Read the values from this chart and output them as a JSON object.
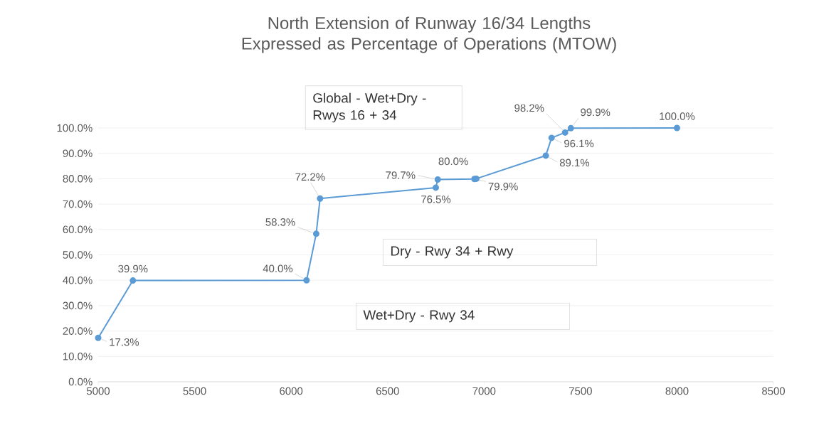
{
  "chart_data": {
    "type": "line",
    "title": "North Extension of Runway 16/34 Lengths Expressed as Percentage of Operations (MTOW)",
    "x": [
      5000,
      5180,
      6080,
      6130,
      6150,
      6750,
      6760,
      6950,
      6960,
      7320,
      7350,
      7420,
      7450,
      8000
    ],
    "values": [
      17.3,
      39.9,
      40.0,
      58.3,
      72.2,
      76.5,
      79.7,
      79.9,
      80.0,
      89.1,
      96.1,
      98.2,
      99.9,
      100.0
    ],
    "value_labels": [
      "17.3%",
      "39.9%",
      "40.0%",
      "58.3%",
      "72.2%",
      "76.5%",
      "79.7%",
      "79.9%",
      "80.0%",
      "89.1%",
      "96.1%",
      "98.2%",
      "99.9%",
      "100.0%"
    ],
    "color": "#5b9bd5",
    "marker": "circle",
    "grid": "y",
    "xlim": [
      5000,
      8500
    ],
    "xticks": [
      5000,
      5500,
      6000,
      6500,
      7000,
      7500,
      8000,
      8500
    ],
    "ylim": [
      0,
      100
    ],
    "yticks": [
      {
        "value": 0,
        "label": "0.0%"
      },
      {
        "value": 10,
        "label": "10.0%"
      },
      {
        "value": 20,
        "label": "20.0%"
      },
      {
        "value": 30,
        "label": "30.0%"
      },
      {
        "value": 40,
        "label": "40.0%"
      },
      {
        "value": 50,
        "label": "50.0%"
      },
      {
        "value": 60,
        "label": "60.0%"
      },
      {
        "value": 70,
        "label": "70.0%"
      },
      {
        "value": 80,
        "label": "80.0%"
      },
      {
        "value": 90,
        "label": "90.0%"
      },
      {
        "value": 100,
        "label": "100.0%"
      }
    ],
    "annotations": [
      "Global - Wet+Dry - Rwys 16 + 34",
      "Dry - Rwy 34 + Rwy",
      "Wet+Dry - Rwy 34"
    ]
  }
}
